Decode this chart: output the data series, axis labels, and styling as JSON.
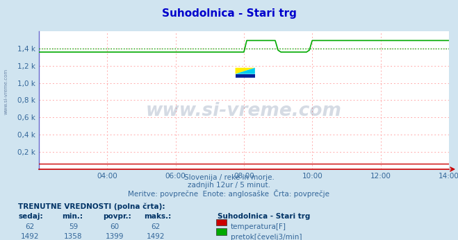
{
  "title": "Suhodolnica - Stari trg",
  "title_color": "#0000cc",
  "bg_color": "#d0e4f0",
  "plot_bg_color": "#ffffff",
  "grid_color_h": "#ffaaaa",
  "grid_color_v": "#ffaaaa",
  "xmin": 0,
  "xmax": 144,
  "x_tick_labels": [
    "04:00",
    "06:00",
    "08:00",
    "10:00",
    "12:00",
    "14:00"
  ],
  "x_tick_positions": [
    24,
    48,
    72,
    96,
    120,
    144
  ],
  "ymin": 0,
  "ymax": 1600,
  "y_tick_labels": [
    "0,2 k",
    "0,4 k",
    "0,6 k",
    "0,8 k",
    "1,0 k",
    "1,2 k",
    "1,4 k"
  ],
  "y_tick_values": [
    200,
    400,
    600,
    800,
    1000,
    1200,
    1400
  ],
  "watermark_text": "www.si-vreme.com",
  "watermark_color": "#1a3a6e",
  "watermark_alpha": 0.18,
  "sidebar_text": "www.si-vreme.com",
  "sidebar_color": "#1a3a6e",
  "temp_color": "#cc0000",
  "flow_color": "#00aa00",
  "avg_line_color": "#00aa00",
  "avg_value": 1399,
  "temp_value": 62,
  "bottom_label": "TRENUTNE VREDNOSTI (polna črta):",
  "col_headers": [
    "sedaj:",
    "min.:",
    "povpr.:",
    "maks.:"
  ],
  "temp_row": [
    62,
    59,
    60,
    62
  ],
  "flow_row": [
    1492,
    1358,
    1399,
    1492
  ],
  "station_name": "Suhodolnica - Stari trg",
  "legend_temp": "temperatura[F]",
  "legend_flow": "pretok[čevelj3/min]",
  "sub_text1": "Slovenija / reke in morje.",
  "sub_text2": "zadnjih 12ur / 5 minut.",
  "sub_text3": "Meritve: povprečne  Enote: anglosaške  Črta: povprečje"
}
